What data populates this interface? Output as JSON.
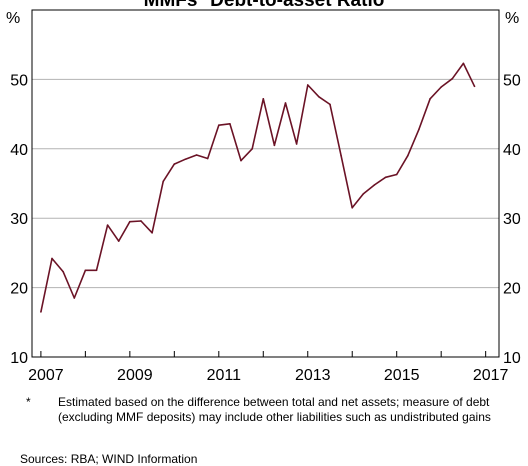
{
  "chart_data": {
    "type": "line",
    "title": "MMFs* Debt-to-asset Ratio",
    "y_unit_left": "%",
    "y_unit_right": "%",
    "ylim": [
      10,
      60
    ],
    "xlim": [
      2006.8,
      2017.3
    ],
    "yticks": [
      10,
      20,
      30,
      40,
      50
    ],
    "xticks": [
      2007,
      2009,
      2011,
      2013,
      2015,
      2017
    ],
    "grid": true,
    "line_color": "#6b1326",
    "series": [
      {
        "values_x": [
          2007.0,
          2007.25,
          2007.5,
          2007.75,
          2008.0,
          2008.25,
          2008.5,
          2008.75,
          2009.0,
          2009.25,
          2009.5,
          2009.75,
          2010.0,
          2010.25,
          2010.5,
          2010.75,
          2011.0,
          2011.25,
          2011.5,
          2011.75,
          2012.0,
          2012.25,
          2012.5,
          2012.75,
          2013.0,
          2013.25,
          2013.5,
          2013.75,
          2014.0,
          2014.25,
          2014.5,
          2014.75,
          2015.0,
          2015.25,
          2015.5,
          2015.75,
          2016.0,
          2016.25,
          2016.5,
          2016.75
        ],
        "values_y": [
          16.5,
          24.2,
          22.3,
          18.5,
          22.5,
          22.5,
          29.0,
          26.7,
          29.5,
          29.6,
          27.9,
          35.3,
          37.8,
          38.5,
          39.1,
          38.6,
          43.4,
          43.6,
          38.3,
          40.0,
          47.2,
          40.5,
          46.6,
          40.7,
          49.2,
          47.5,
          46.4,
          39.0,
          31.5,
          33.5,
          34.8,
          35.9,
          36.3,
          39.0,
          42.8,
          47.2,
          48.9,
          50.1,
          52.3,
          49.0
        ]
      }
    ],
    "footnote_marker": "*",
    "footnote": "Estimated based on the difference between total and net assets; measure of debt (excluding MMF deposits) may include other liabilities such as undistributed gains",
    "sources": "Sources: RBA; WIND Information"
  }
}
